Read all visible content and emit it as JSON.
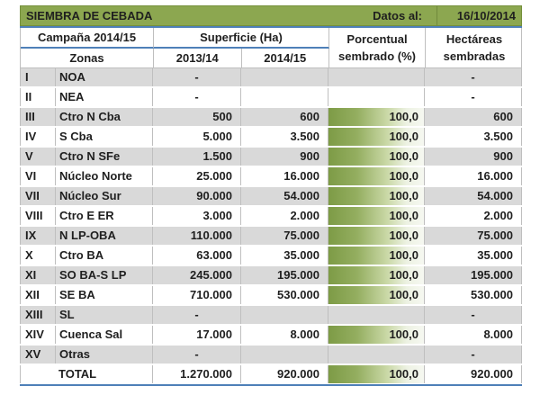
{
  "title_bar": {
    "title": "SIEMBRA DE CEBADA",
    "date_label": "Datos al:",
    "date_value": "16/10/2014"
  },
  "header": {
    "campaign": "Campaña 2014/15",
    "surface": "Superficie (Ha)",
    "zones": "Zonas",
    "year_prev": "2013/14",
    "year_curr": "2014/15",
    "percent_line1": "Porcentual",
    "percent_line2": "sembrado (%)",
    "hectares_line1": "Hectáreas",
    "hectares_line2": "sembradas"
  },
  "chart_data": {
    "type": "table",
    "title": "SIEMBRA DE CEBADA",
    "date_of_data": "16/10/2014",
    "columns": [
      "Zonas",
      "Superficie (Ha) 2013/14",
      "Superficie (Ha) 2014/15",
      "Porcentual sembrado (%)",
      "Hectáreas sembradas"
    ],
    "rows": [
      {
        "num": "I",
        "zone": "NOA",
        "s2013": "-",
        "s2014": "",
        "pct": "",
        "ha": "-",
        "bar": false
      },
      {
        "num": "II",
        "zone": "NEA",
        "s2013": "-",
        "s2014": "",
        "pct": "",
        "ha": "-",
        "bar": false
      },
      {
        "num": "III",
        "zone": "Ctro N Cba",
        "s2013": "500",
        "s2014": "600",
        "pct": "100,0",
        "ha": "600",
        "bar": true
      },
      {
        "num": "IV",
        "zone": "S Cba",
        "s2013": "5.000",
        "s2014": "3.500",
        "pct": "100,0",
        "ha": "3.500",
        "bar": true
      },
      {
        "num": "V",
        "zone": "Ctro N SFe",
        "s2013": "1.500",
        "s2014": "900",
        "pct": "100,0",
        "ha": "900",
        "bar": true
      },
      {
        "num": "VI",
        "zone": "Núcleo Norte",
        "s2013": "25.000",
        "s2014": "16.000",
        "pct": "100,0",
        "ha": "16.000",
        "bar": true
      },
      {
        "num": "VII",
        "zone": "Núcleo Sur",
        "s2013": "90.000",
        "s2014": "54.000",
        "pct": "100,0",
        "ha": "54.000",
        "bar": true
      },
      {
        "num": "VIII",
        "zone": "Ctro E ER",
        "s2013": "3.000",
        "s2014": "2.000",
        "pct": "100,0",
        "ha": "2.000",
        "bar": true
      },
      {
        "num": "IX",
        "zone": "N LP-OBA",
        "s2013": "110.000",
        "s2014": "75.000",
        "pct": "100,0",
        "ha": "75.000",
        "bar": true
      },
      {
        "num": "X",
        "zone": "Ctro BA",
        "s2013": "63.000",
        "s2014": "35.000",
        "pct": "100,0",
        "ha": "35.000",
        "bar": true
      },
      {
        "num": "XI",
        "zone": "SO BA-S LP",
        "s2013": "245.000",
        "s2014": "195.000",
        "pct": "100,0",
        "ha": "195.000",
        "bar": true
      },
      {
        "num": "XII",
        "zone": "SE BA",
        "s2013": "710.000",
        "s2014": "530.000",
        "pct": "100,0",
        "ha": "530.000",
        "bar": true
      },
      {
        "num": "XIII",
        "zone": "SL",
        "s2013": "-",
        "s2014": "",
        "pct": "",
        "ha": "-",
        "bar": false
      },
      {
        "num": "XIV",
        "zone": "Cuenca Sal",
        "s2013": "17.000",
        "s2014": "8.000",
        "pct": "100,0",
        "ha": "8.000",
        "bar": true
      },
      {
        "num": "XV",
        "zone": "Otras",
        "s2013": "-",
        "s2014": "",
        "pct": "",
        "ha": "-",
        "bar": false
      }
    ],
    "total": {
      "label": "TOTAL",
      "s2013": "1.270.000",
      "s2014": "920.000",
      "pct": "100,0",
      "ha": "920.000",
      "bar": true
    }
  },
  "colors": {
    "header_green": "#8ca750",
    "accent_blue": "#4e80b8",
    "row_gray": "#d9d9d9",
    "bar_green_start": "#7d9b46",
    "bar_green_end": "#f6f8f1",
    "grid_gray": "#bfbfbf",
    "text_dark": "#1f1f1f"
  }
}
